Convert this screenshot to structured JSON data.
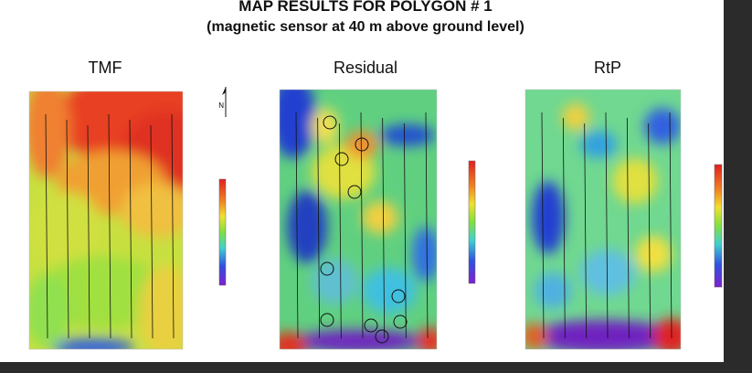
{
  "header": {
    "title": "MAP RESULTS FOR POLYGON # 1",
    "subtitle": "(magnetic sensor at 40 m above ground level)"
  },
  "panels": [
    {
      "title": "TMF"
    },
    {
      "title": "Residual"
    },
    {
      "title": "RtP"
    }
  ],
  "north_label": "N"
}
